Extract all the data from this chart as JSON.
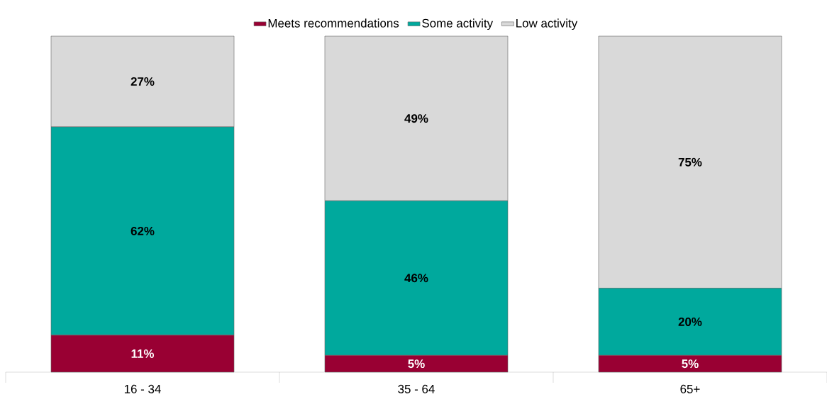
{
  "chart_data": {
    "type": "bar",
    "stacked": true,
    "categories": [
      "16 - 34",
      "35 - 64",
      "65+"
    ],
    "legend": "top",
    "series": [
      {
        "name": "Meets recommendations",
        "color": "#990033",
        "values": [
          11,
          5,
          5
        ],
        "value_labels": [
          "11%",
          "5%",
          "5%"
        ]
      },
      {
        "name": "Some activity",
        "color": "#00a99d",
        "values": [
          62,
          46,
          20
        ],
        "value_labels": [
          "62%",
          "46%",
          "20%"
        ]
      },
      {
        "name": "Low activity",
        "color": "#d9d9d9",
        "values": [
          27,
          49,
          75
        ],
        "value_labels": [
          "27%",
          "49%",
          "75%"
        ]
      }
    ]
  }
}
